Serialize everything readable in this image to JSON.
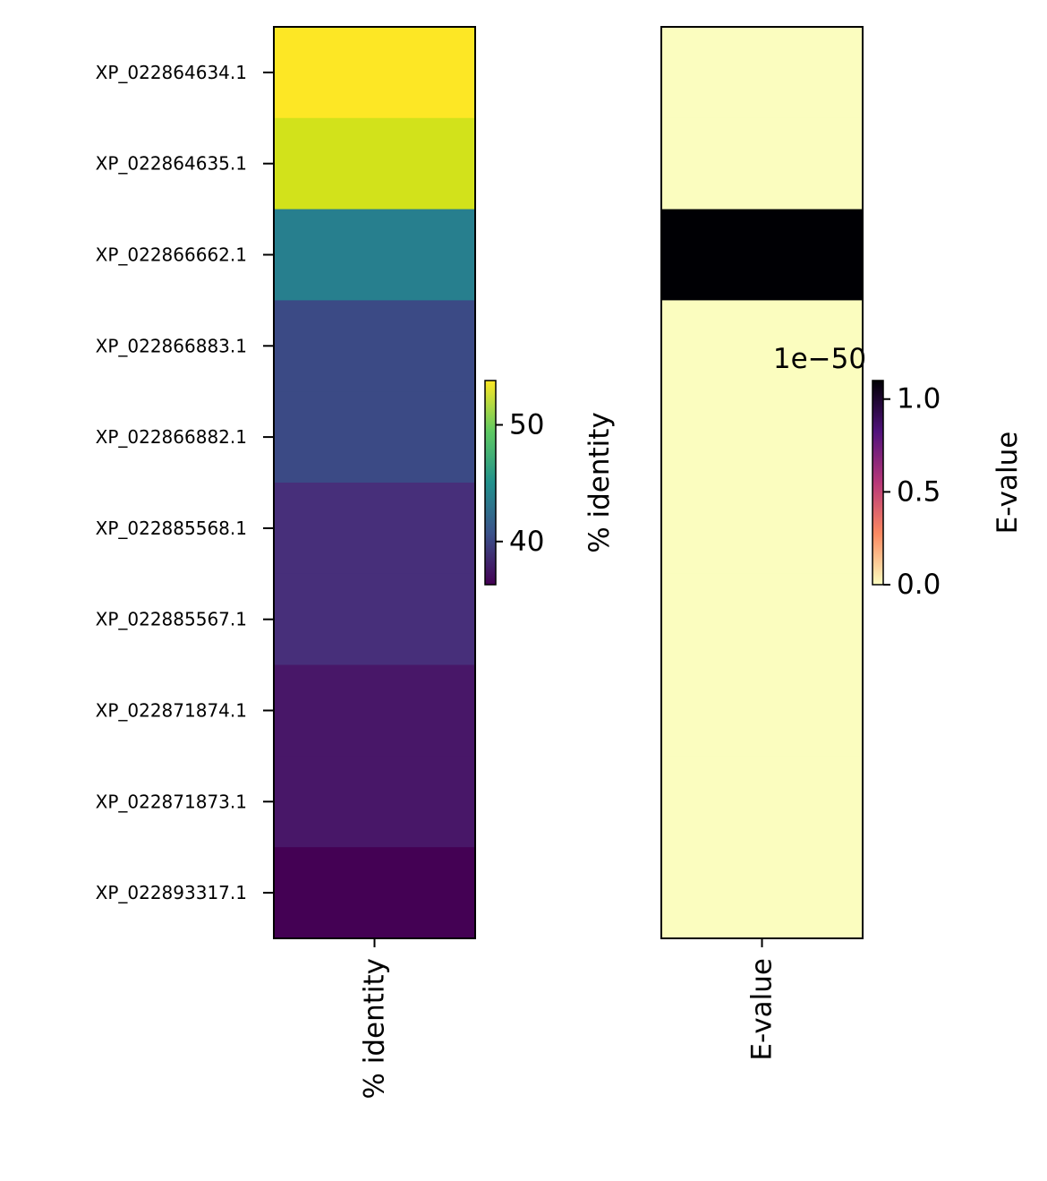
{
  "chart_data": {
    "type": "heatmap",
    "rows": [
      "XP_022864634.1",
      "XP_022864635.1",
      "XP_022866662.1",
      "XP_022866883.1",
      "XP_022866882.1",
      "XP_022885568.1",
      "XP_022885567.1",
      "XP_022871874.1",
      "XP_022871873.1",
      "XP_022893317.1"
    ],
    "panels": [
      {
        "column_label": "% identity",
        "colormap": "viridis",
        "values": [
          53.8,
          51.7,
          46.2,
          41.4,
          41.4,
          38.8,
          38.8,
          37.2,
          37.2,
          36.3
        ],
        "colorbar": {
          "label": "% identity",
          "range": [
            36.3,
            53.8
          ],
          "ticks": [
            40,
            50
          ],
          "tick_labels": [
            "40",
            "50"
          ],
          "offset_text": ""
        },
        "cell_colors": [
          "#fde725",
          "#d2e21b",
          "#277f8e",
          "#3b4a85",
          "#3b4a85",
          "#472f7a",
          "#472f7a",
          "#481768",
          "#481768",
          "#440154"
        ]
      },
      {
        "column_label": "E-value",
        "colormap": "magma_r",
        "values": [
          0,
          0,
          1.1e-50,
          0,
          0,
          0,
          0,
          0,
          0,
          0
        ],
        "colorbar": {
          "label": "E-value",
          "range": [
            0,
            1.1e-50
          ],
          "ticks": [
            0,
            5e-51,
            1e-50
          ],
          "tick_labels": [
            "0.0",
            "0.5",
            "1.0"
          ],
          "offset_text": "1e−50"
        },
        "cell_colors": [
          "#fbfdbf",
          "#fbfdbf",
          "#000004",
          "#fbfdbf",
          "#fbfdbf",
          "#fbfdbf",
          "#fbfdbf",
          "#fbfdbf",
          "#fbfdbf",
          "#fbfdbf"
        ]
      }
    ]
  }
}
